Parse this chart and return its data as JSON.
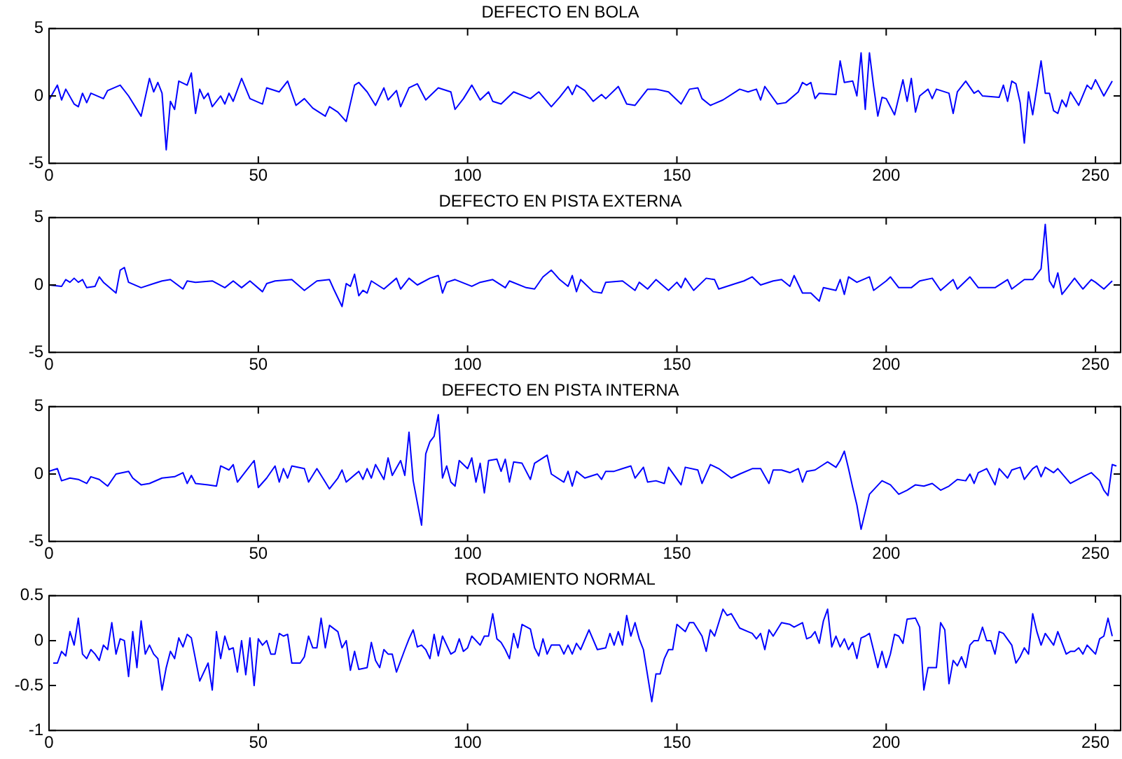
{
  "chart_data": [
    {
      "type": "line",
      "title": "DEFECTO EN BOLA",
      "xlim": [
        0,
        256
      ],
      "xticks": [
        0,
        50,
        100,
        150,
        200,
        250
      ],
      "ylim": [
        -5,
        5
      ],
      "yticks": [
        -5,
        0,
        5
      ],
      "series": [
        {
          "color": "#0000ff",
          "x": [
            0,
            2,
            3,
            4,
            6,
            7,
            8,
            9,
            10,
            13,
            14,
            17,
            19,
            22,
            24,
            25,
            26,
            27,
            28,
            29,
            30,
            31,
            33,
            34,
            35,
            36,
            37,
            38,
            39,
            41,
            42,
            43,
            44,
            46,
            48,
            51,
            52,
            55,
            57,
            59,
            61,
            63,
            66,
            67,
            69,
            71,
            73,
            74,
            76,
            78,
            80,
            81,
            83,
            84,
            86,
            88,
            90,
            93,
            96,
            97,
            99,
            101,
            103,
            105,
            106,
            108,
            111,
            115,
            117,
            120,
            122,
            124,
            125,
            126,
            128,
            130,
            132,
            133,
            136,
            138,
            140,
            143,
            145,
            148,
            151,
            153,
            155,
            156,
            158,
            161,
            165,
            167,
            169,
            170,
            171,
            174,
            176,
            179,
            180,
            181,
            182,
            183,
            184,
            188,
            189,
            190,
            192,
            193,
            194,
            195,
            196,
            197,
            198,
            199,
            200,
            202,
            204,
            205,
            206,
            207,
            208,
            210,
            211,
            212,
            215,
            216,
            217,
            219,
            221,
            222,
            223,
            227,
            228,
            229,
            230,
            231,
            232,
            233,
            234,
            235,
            237,
            238,
            239,
            240,
            241,
            242,
            243,
            244,
            246,
            248,
            249,
            250,
            252,
            254
          ],
          "values": [
            -0.3,
            0.8,
            -0.3,
            0.5,
            -0.6,
            -0.8,
            0.2,
            -0.5,
            0.2,
            -0.2,
            0.4,
            0.8,
            0,
            -1.5,
            1.3,
            0.3,
            1,
            0.2,
            -4,
            -0.4,
            -1,
            1.1,
            0.8,
            1.7,
            -1.3,
            0.5,
            -0.2,
            0.2,
            -0.8,
            0,
            -0.6,
            0.2,
            -0.4,
            1.3,
            -0.2,
            -0.6,
            0.6,
            0.3,
            1.1,
            -0.7,
            -0.2,
            -0.9,
            -1.5,
            -0.8,
            -1.2,
            -1.9,
            0.8,
            1,
            0.3,
            -0.7,
            0.6,
            -0.3,
            0.4,
            -0.8,
            0.6,
            0.9,
            -0.3,
            0.6,
            0.3,
            -1,
            -0.2,
            0.8,
            -0.3,
            0.3,
            -0.4,
            -0.6,
            0.3,
            -0.2,
            0.3,
            -0.8,
            -0.1,
            0.7,
            0.1,
            0.8,
            0.4,
            -0.4,
            0.1,
            -0.2,
            0.7,
            -0.6,
            -0.7,
            0.5,
            0.5,
            0.3,
            -0.6,
            0.5,
            0.6,
            -0.2,
            -0.7,
            -0.3,
            0.5,
            0.3,
            0.5,
            -0.3,
            0.7,
            -0.6,
            -0.5,
            0.3,
            1,
            0.8,
            1,
            -0.2,
            0.2,
            0.1,
            2.6,
            1,
            1.1,
            0,
            3.2,
            -1,
            3.2,
            0.7,
            -1.5,
            -0.1,
            -0.2,
            -1.4,
            1.2,
            -0.4,
            1.3,
            -1.2,
            0,
            0.5,
            -0.2,
            0.5,
            0.2,
            -1.3,
            0.3,
            1.1,
            0.2,
            0.4,
            0,
            -0.1,
            0.8,
            -0.4,
            1.1,
            0.9,
            -0.5,
            -3.5,
            0.3,
            -1.4,
            2.6,
            0.2,
            0.2,
            -1.1,
            -1.3,
            -0.3,
            -0.8,
            0.3,
            -0.7,
            0.8,
            0.5,
            1.2,
            0,
            1.1
          ]
        }
      ]
    },
    {
      "type": "line",
      "title": "DEFECTO EN PISTA EXTERNA",
      "xlim": [
        0,
        256
      ],
      "xticks": [
        0,
        50,
        100,
        150,
        200,
        250
      ],
      "ylim": [
        -5,
        5
      ],
      "yticks": [
        -5,
        0,
        5
      ],
      "series": [
        {
          "color": "#0000ff",
          "x": [
            0,
            3,
            4,
            5,
            6,
            7,
            8,
            9,
            11,
            12,
            13,
            16,
            17,
            18,
            19,
            22,
            25,
            27,
            29,
            32,
            33,
            35,
            39,
            42,
            44,
            46,
            48,
            51,
            52,
            54,
            58,
            61,
            64,
            67,
            68,
            70,
            71,
            72,
            73,
            74,
            75,
            76,
            77,
            80,
            83,
            84,
            86,
            88,
            91,
            93,
            94,
            95,
            97,
            101,
            103,
            106,
            109,
            110,
            114,
            116,
            118,
            120,
            122,
            124,
            125,
            126,
            127,
            130,
            132,
            133,
            137,
            140,
            141,
            143,
            145,
            148,
            150,
            151,
            152,
            154,
            157,
            159,
            160,
            164,
            166,
            168,
            170,
            173,
            175,
            177,
            178,
            180,
            182,
            184,
            185,
            188,
            189,
            190,
            191,
            193,
            196,
            197,
            200,
            201,
            203,
            206,
            208,
            211,
            213,
            216,
            217,
            220,
            222,
            226,
            229,
            230,
            233,
            235,
            237,
            238,
            239,
            240,
            241,
            242,
            245,
            247,
            249,
            250,
            252,
            254
          ],
          "values": [
            0,
            -0.1,
            0.4,
            0.2,
            0.5,
            0.2,
            0.4,
            -0.2,
            -0.1,
            0.6,
            0.2,
            -0.6,
            1.1,
            1.3,
            0.2,
            -0.2,
            0.1,
            0.3,
            0.4,
            -0.3,
            0.3,
            0.2,
            0.3,
            -0.2,
            0.3,
            -0.2,
            0.3,
            -0.5,
            0.1,
            0.3,
            0.4,
            -0.4,
            0.3,
            0.4,
            -0.3,
            -1.6,
            0.1,
            -0.1,
            0.8,
            -0.8,
            -0.4,
            -0.6,
            0.3,
            -0.3,
            0.5,
            -0.3,
            0.5,
            0,
            0.5,
            0.7,
            -0.6,
            0.2,
            0.4,
            -0.1,
            0.2,
            0.4,
            -0.2,
            0.3,
            -0.2,
            -0.3,
            0.6,
            1.1,
            0.4,
            -0.1,
            0.7,
            -0.5,
            0.4,
            -0.5,
            -0.6,
            0.2,
            0.3,
            -0.4,
            0.2,
            -0.3,
            0.4,
            -0.4,
            0.2,
            -0.2,
            0.5,
            -0.4,
            0.5,
            0.4,
            -0.3,
            0.1,
            0.3,
            0.6,
            0,
            0.3,
            0.4,
            -0.1,
            0.7,
            -0.6,
            -0.6,
            -1.2,
            -0.2,
            -0.4,
            0.4,
            -0.7,
            0.6,
            0.2,
            0.6,
            -0.4,
            0.3,
            0.6,
            -0.2,
            -0.2,
            0.3,
            0.5,
            -0.4,
            0.4,
            -0.3,
            0.6,
            -0.2,
            -0.2,
            0.4,
            -0.3,
            0.4,
            0.4,
            1.2,
            4.5,
            0.3,
            -0.2,
            0.9,
            -0.7,
            0.5,
            -0.3,
            0.4,
            0.2,
            -0.3,
            0.3
          ]
        }
      ]
    },
    {
      "type": "line",
      "title": "DEFECTO EN PISTA INTERNA",
      "xlim": [
        0,
        256
      ],
      "xticks": [
        0,
        50,
        100,
        150,
        200,
        250
      ],
      "ylim": [
        -5,
        5
      ],
      "yticks": [
        -5,
        0,
        5
      ],
      "series": [
        {
          "color": "#0000ff",
          "x": [
            0,
            2,
            3,
            5,
            7,
            9,
            10,
            12,
            14,
            16,
            19,
            20,
            22,
            24,
            27,
            30,
            32,
            33,
            34,
            35,
            38,
            40,
            41,
            43,
            44,
            45,
            47,
            49,
            50,
            52,
            54,
            55,
            56,
            57,
            58,
            61,
            62,
            64,
            66,
            67,
            69,
            70,
            71,
            74,
            75,
            76,
            77,
            78,
            80,
            81,
            82,
            84,
            85,
            86,
            87,
            89,
            90,
            91,
            92,
            93,
            94,
            95,
            96,
            97,
            98,
            100,
            101,
            102,
            103,
            104,
            105,
            107,
            108,
            109,
            110,
            111,
            113,
            115,
            116,
            119,
            120,
            123,
            124,
            125,
            126,
            128,
            131,
            132,
            133,
            135,
            137,
            139,
            140,
            142,
            143,
            145,
            147,
            148,
            151,
            152,
            155,
            156,
            158,
            160,
            163,
            165,
            168,
            170,
            172,
            173,
            175,
            177,
            179,
            180,
            181,
            183,
            185,
            186,
            188,
            189,
            190,
            191,
            192,
            193,
            194,
            196,
            199,
            201,
            203,
            205,
            207,
            209,
            211,
            213,
            215,
            217,
            219,
            220,
            221,
            222,
            224,
            226,
            227,
            229,
            230,
            232,
            233,
            235,
            236,
            237,
            238,
            240,
            241,
            244,
            247,
            249,
            251,
            252,
            253,
            254,
            255
          ],
          "values": [
            0.2,
            0.4,
            -0.5,
            -0.3,
            -0.4,
            -0.7,
            -0.2,
            -0.4,
            -0.9,
            0,
            0.2,
            -0.3,
            -0.8,
            -0.7,
            -0.3,
            -0.2,
            0.1,
            -0.7,
            -0.1,
            -0.7,
            -0.8,
            -0.9,
            0.6,
            0.3,
            0.7,
            -0.6,
            0.2,
            1,
            -1,
            -0.3,
            0.6,
            -0.6,
            0.4,
            -0.3,
            0.6,
            0.4,
            -0.6,
            0.4,
            -0.6,
            -1.1,
            -0.3,
            0.3,
            -0.6,
            0.2,
            -0.4,
            0.4,
            -0.3,
            0.7,
            -0.4,
            1.2,
            -0.1,
            1,
            -0.1,
            3.1,
            -0.5,
            -3.8,
            1.5,
            2.4,
            2.8,
            4.4,
            -0.3,
            0.6,
            -0.6,
            -0.9,
            1,
            0.4,
            1.2,
            -0.6,
            0.8,
            -1.4,
            1,
            1.1,
            0.2,
            1.1,
            -0.6,
            0.9,
            0.8,
            -0.4,
            0.8,
            1.4,
            0,
            -0.6,
            0.2,
            -0.9,
            0.2,
            -0.3,
            0,
            -0.4,
            0.2,
            0.2,
            0.4,
            0.6,
            -0.3,
            0.5,
            -0.6,
            -0.5,
            -0.7,
            0.5,
            -0.8,
            0.5,
            0.3,
            -0.7,
            0.7,
            0.4,
            -0.3,
            0,
            0.4,
            0.4,
            -0.7,
            0.3,
            0.3,
            0.1,
            0.4,
            -0.6,
            0.2,
            0.3,
            0.7,
            0.9,
            0.5,
            1,
            1.7,
            0.4,
            -1,
            -2.3,
            -4.1,
            -1.5,
            -0.5,
            -0.8,
            -1.5,
            -1.2,
            -0.8,
            -0.9,
            -0.7,
            -1.2,
            -0.9,
            -0.4,
            -0.5,
            0,
            -0.7,
            0.1,
            0.4,
            -0.8,
            0.4,
            -0.3,
            0.3,
            0.5,
            -0.4,
            0.4,
            0.6,
            -0.2,
            0.5,
            0.1,
            0.4,
            -0.7,
            -0.2,
            0.1,
            -0.5,
            -1.2,
            -1.6,
            0.7,
            0.6
          ]
        }
      ]
    },
    {
      "type": "line",
      "title": "RODAMIENTO NORMAL",
      "xlim": [
        0,
        256
      ],
      "xticks": [
        0,
        50,
        100,
        150,
        200,
        250
      ],
      "ylim": [
        -1,
        0.5
      ],
      "yticks": [
        -1,
        -0.5,
        0,
        0.5
      ],
      "series": [
        {
          "color": "#0000ff",
          "x": [
            1,
            2,
            3,
            4,
            5,
            6,
            7,
            8,
            9,
            10,
            11,
            12,
            13,
            14,
            15,
            16,
            17,
            18,
            19,
            20,
            21,
            22,
            23,
            24,
            25,
            26,
            27,
            28,
            29,
            30,
            31,
            32,
            33,
            34,
            36,
            38,
            39,
            40,
            41,
            42,
            43,
            44,
            45,
            46,
            47,
            48,
            49,
            50,
            51,
            52,
            53,
            54,
            55,
            56,
            57,
            58,
            60,
            61,
            62,
            63,
            64,
            65,
            66,
            67,
            69,
            70,
            71,
            72,
            73,
            74,
            76,
            77,
            78,
            79,
            80,
            81,
            82,
            83,
            85,
            86,
            87,
            88,
            89,
            90,
            91,
            92,
            93,
            94,
            96,
            97,
            98,
            99,
            100,
            101,
            103,
            104,
            105,
            106,
            107,
            108,
            109,
            110,
            111,
            112,
            113,
            115,
            116,
            117,
            118,
            119,
            120,
            122,
            123,
            124,
            125,
            126,
            127,
            129,
            131,
            133,
            134,
            135,
            136,
            137,
            138,
            139,
            140,
            141,
            142,
            144,
            145,
            146,
            147,
            148,
            149,
            150,
            152,
            153,
            154,
            156,
            157,
            158,
            159,
            161,
            162,
            163,
            165,
            167,
            168,
            169,
            170,
            171,
            172,
            173,
            175,
            177,
            178,
            180,
            181,
            182,
            183,
            184,
            185,
            186,
            187,
            188,
            189,
            190,
            191,
            192,
            193,
            194,
            195,
            196,
            198,
            199,
            200,
            201,
            202,
            203,
            204,
            205,
            207,
            208,
            209,
            210,
            212,
            213,
            214,
            215,
            216,
            217,
            218,
            219,
            220,
            221,
            222,
            223,
            224,
            225,
            226,
            227,
            228,
            230,
            231,
            232,
            233,
            234,
            235,
            236,
            237,
            238,
            240,
            241,
            243,
            244,
            245,
            246,
            247,
            248,
            249,
            250,
            251,
            252,
            253,
            254
          ],
          "values": [
            -0.25,
            -0.25,
            -0.12,
            -0.17,
            0.1,
            -0.05,
            0.25,
            -0.15,
            -0.2,
            -0.1,
            -0.15,
            -0.22,
            -0.05,
            -0.1,
            0.2,
            -0.15,
            0.02,
            0,
            -0.4,
            0.1,
            -0.3,
            0.22,
            -0.15,
            -0.05,
            -0.15,
            -0.2,
            -0.55,
            -0.3,
            -0.12,
            -0.2,
            0.03,
            -0.07,
            0.07,
            0.03,
            -0.45,
            -0.25,
            -0.55,
            0.1,
            -0.2,
            0.05,
            -0.1,
            -0.08,
            -0.35,
            0,
            -0.38,
            0.03,
            -0.5,
            0.02,
            -0.05,
            0,
            -0.15,
            -0.15,
            0.08,
            0.05,
            0.07,
            -0.25,
            -0.25,
            -0.18,
            0.05,
            -0.08,
            -0.08,
            0.25,
            -0.08,
            0.17,
            0.1,
            -0.08,
            0,
            -0.33,
            -0.12,
            -0.32,
            -0.3,
            -0.02,
            -0.22,
            -0.3,
            -0.1,
            -0.15,
            -0.15,
            -0.35,
            -0.1,
            0.02,
            0.12,
            -0.07,
            -0.05,
            -0.1,
            -0.2,
            0.07,
            -0.17,
            0.05,
            -0.15,
            -0.12,
            0.02,
            -0.12,
            -0.08,
            0.05,
            -0.05,
            0.05,
            0.05,
            0.3,
            0.02,
            -0.02,
            -0.1,
            -0.2,
            0.08,
            -0.08,
            0.18,
            0.13,
            -0.08,
            -0.17,
            0.02,
            -0.15,
            -0.05,
            -0.05,
            -0.15,
            -0.05,
            -0.15,
            -0.03,
            -0.1,
            0.12,
            -0.1,
            -0.08,
            0.08,
            -0.05,
            0.1,
            -0.05,
            0.28,
            0.05,
            0.2,
            0.02,
            -0.1,
            -0.68,
            -0.37,
            -0.37,
            -0.2,
            -0.1,
            -0.1,
            0.18,
            0.1,
            0.2,
            0.2,
            0.05,
            -0.12,
            0.12,
            0.05,
            0.35,
            0.28,
            0.3,
            0.14,
            0.1,
            0.08,
            0.02,
            0.08,
            -0.1,
            0.12,
            0.05,
            0.2,
            0.18,
            0.15,
            0.2,
            0.02,
            0.04,
            0.1,
            -0.03,
            0.22,
            0.35,
            -0.07,
            0.05,
            -0.07,
            0.02,
            -0.1,
            -0.02,
            -0.2,
            0.03,
            0.05,
            0.08,
            -0.3,
            -0.12,
            -0.3,
            -0.15,
            0.07,
            0.05,
            -0.03,
            0.24,
            0.25,
            0.15,
            -0.55,
            -0.3,
            -0.3,
            0.2,
            0.12,
            -0.48,
            -0.22,
            -0.28,
            -0.18,
            -0.3,
            -0.05,
            0,
            0,
            0.15,
            0,
            0,
            -0.15,
            0.1,
            0.08,
            -0.05,
            -0.25,
            -0.18,
            -0.08,
            -0.15,
            0.3,
            0.1,
            -0.05,
            0.08,
            -0.05,
            0.1,
            -0.15,
            -0.12,
            -0.12,
            -0.08,
            -0.15,
            -0.05,
            -0.1,
            -0.15,
            0.02,
            0.05,
            0.25,
            0.05
          ]
        }
      ]
    }
  ]
}
